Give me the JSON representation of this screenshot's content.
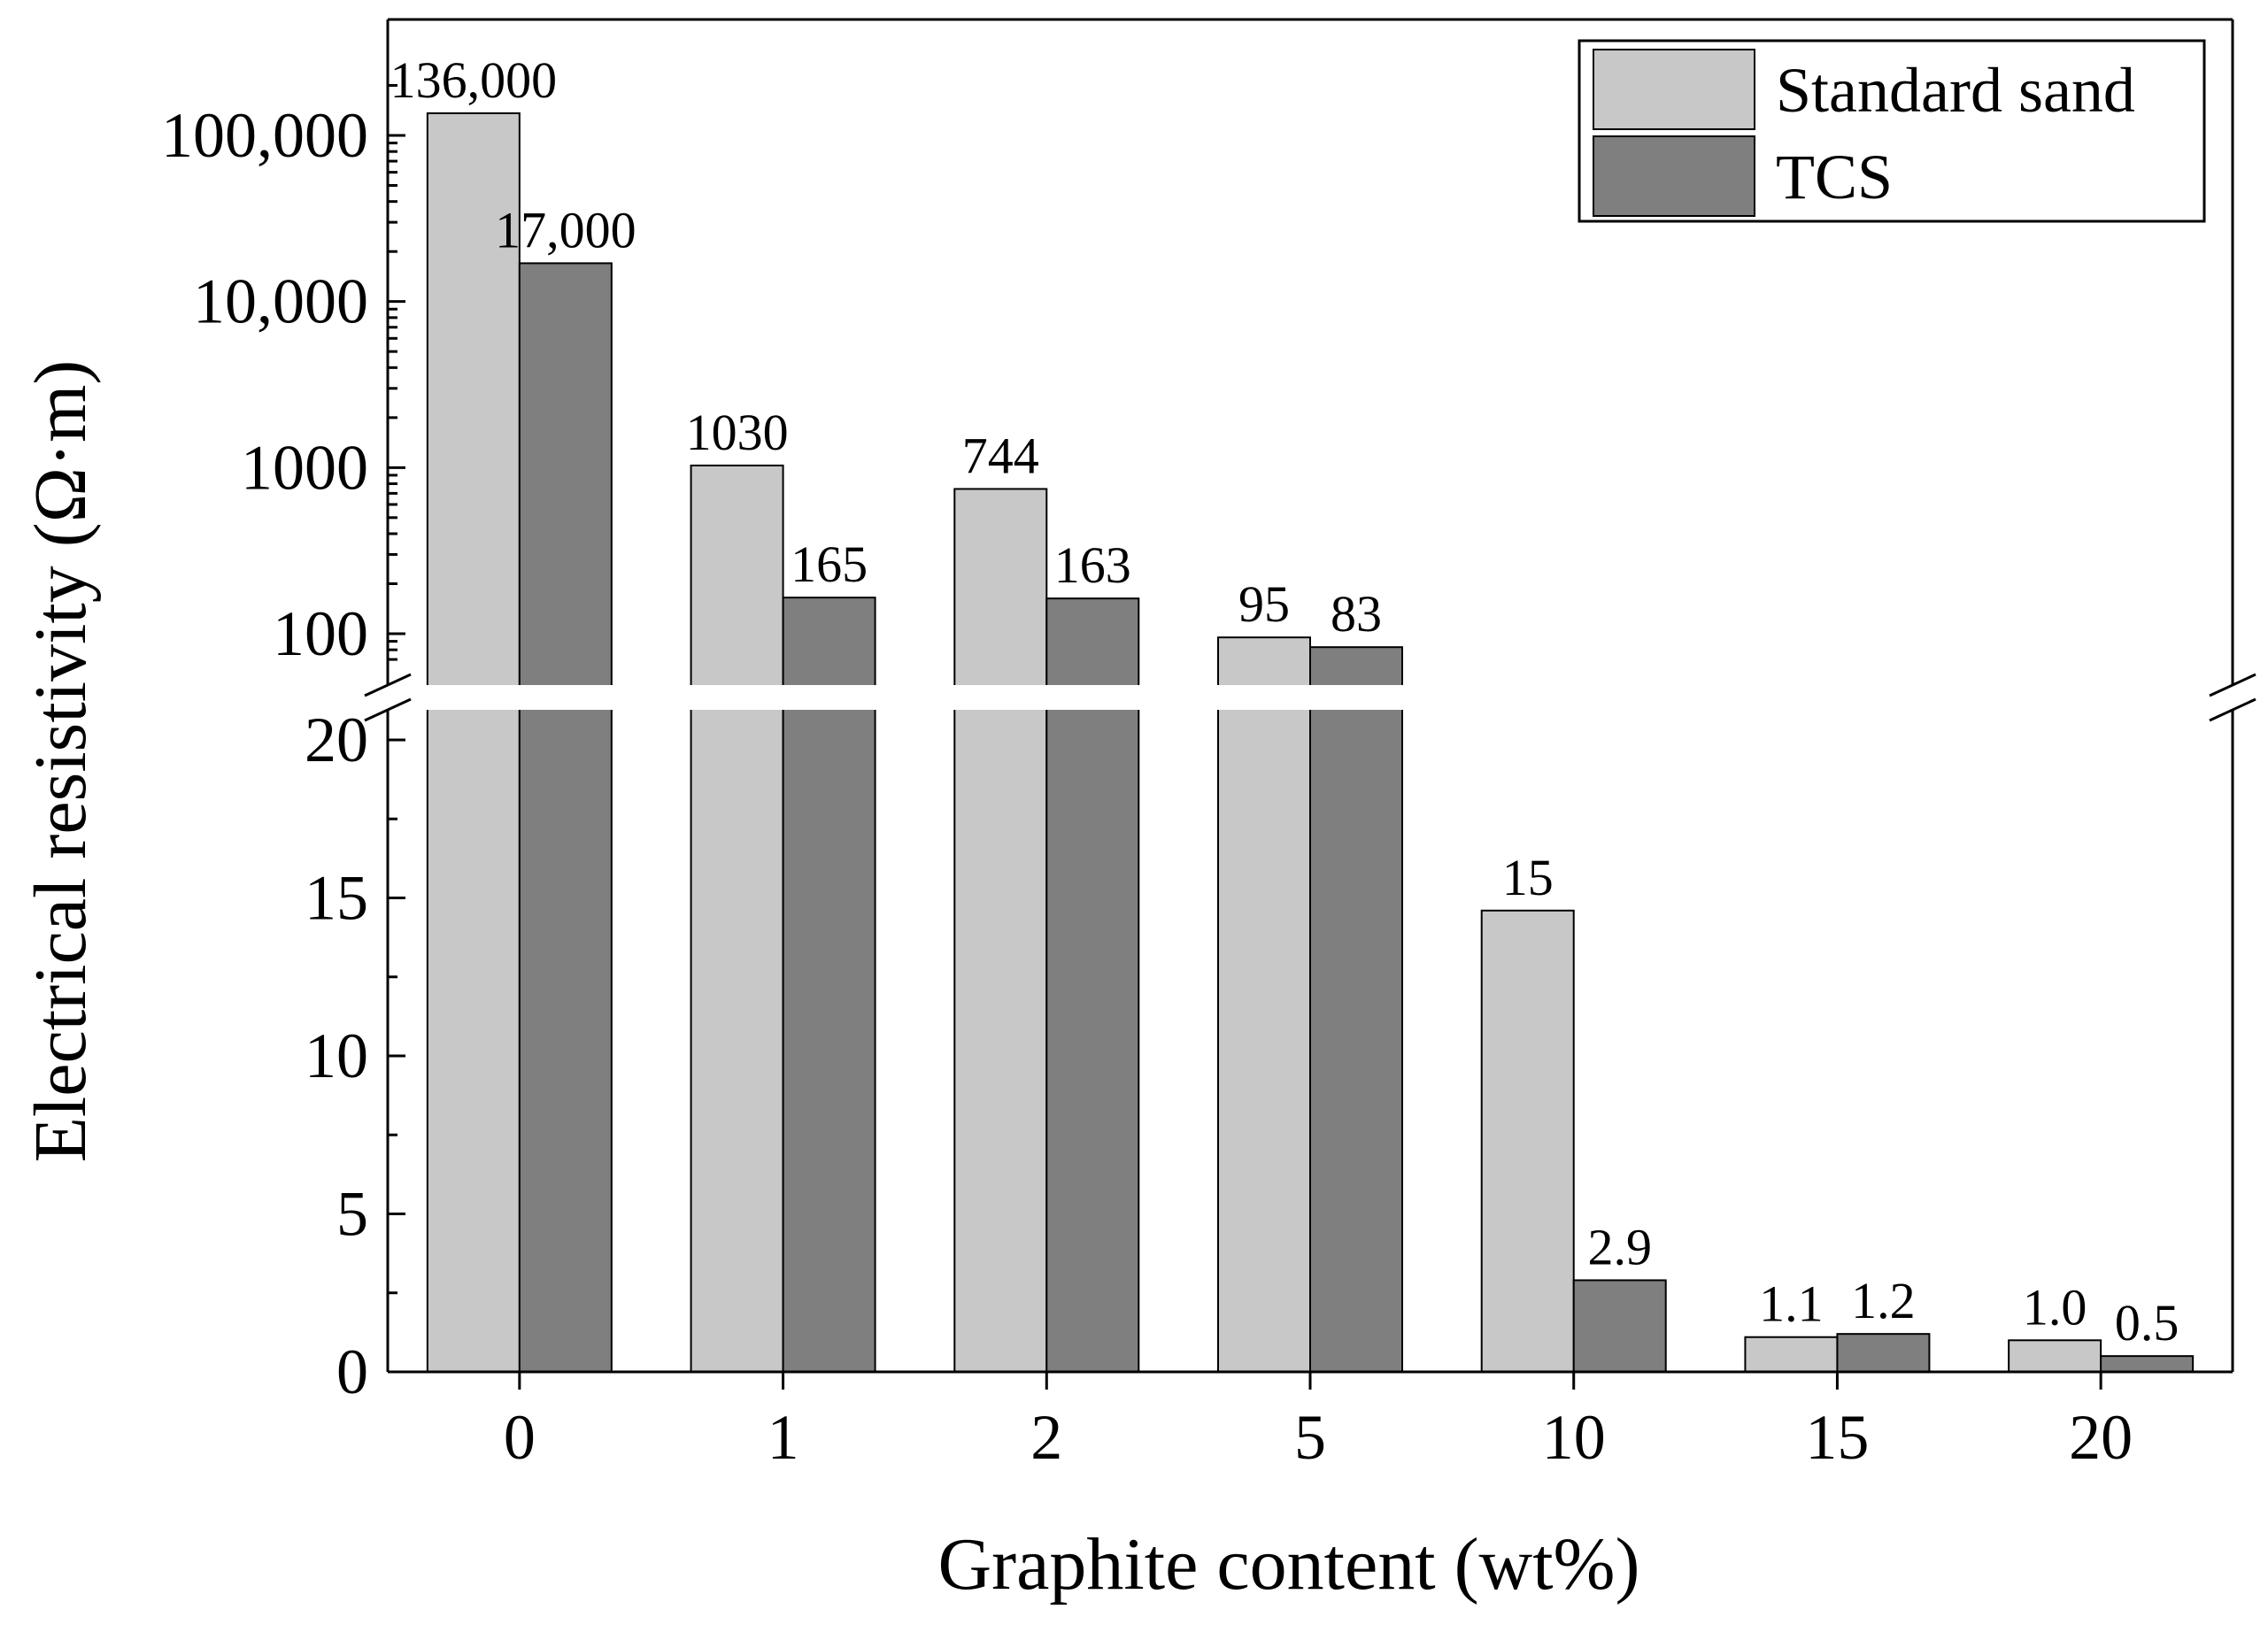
{
  "chart_data": {
    "type": "bar",
    "categories": [
      "0",
      "1",
      "2",
      "5",
      "10",
      "15",
      "20"
    ],
    "series": [
      {
        "name": "Standard sand",
        "color": "#c8c8c8",
        "values": [
          136000,
          1030,
          744,
          95,
          14.6,
          1.1,
          1.0
        ],
        "labels": [
          "136,000",
          "1030",
          "744",
          "95",
          "15",
          "1.1",
          "1.0"
        ]
      },
      {
        "name": "TCS",
        "color": "#7f7f7f",
        "values": [
          17000,
          165,
          163,
          83,
          2.9,
          1.2,
          0.5
        ],
        "labels": [
          "17,000",
          "165",
          "163",
          "83",
          "2.9",
          "1.2",
          "0.5"
        ]
      }
    ],
    "xlabel": "Graphite content (wt%)",
    "ylabel": "Electrical resistivity (Ω·m)",
    "y_axis": {
      "broken": true,
      "lower": {
        "scale": "linear",
        "range": [
          0,
          21
        ],
        "ticks": [
          0,
          5,
          10,
          15,
          20
        ],
        "tick_labels": [
          "0",
          "5",
          "10",
          "15",
          "20"
        ]
      },
      "upper": {
        "scale": "log",
        "range": [
          70,
          250000
        ],
        "ticks": [
          100,
          1000,
          10000,
          100000
        ],
        "tick_labels": [
          "100",
          "1000",
          "10,000",
          "100,000"
        ]
      }
    },
    "legend": {
      "position": "top-right"
    },
    "grid": false
  }
}
